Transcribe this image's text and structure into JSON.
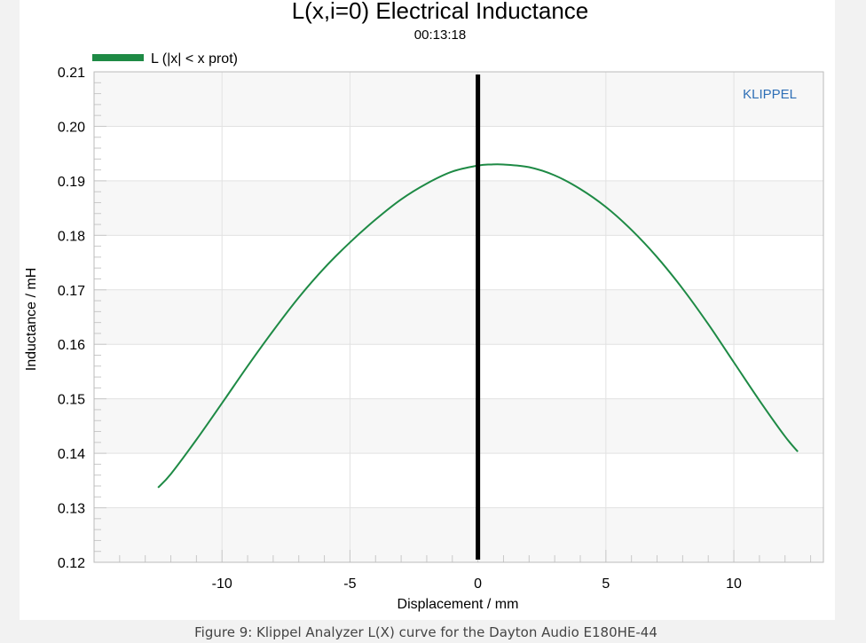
{
  "chart_data": {
    "type": "line",
    "title": "L(x,i=0) Electrical Inductance",
    "subtitle": "00:13:18",
    "xlabel": "Displacement / mm",
    "ylabel": "Inductance / mH",
    "xlim": [
      -15,
      13.5
    ],
    "ylim": [
      0.12,
      0.21
    ],
    "xticks": [
      -10,
      -5,
      0,
      5,
      10
    ],
    "yticks": [
      0.12,
      0.13,
      0.14,
      0.15,
      0.16,
      0.17,
      0.18,
      0.19,
      0.2,
      0.21
    ],
    "ytick_labels": [
      "0.12",
      "0.13",
      "0.14",
      "0.15",
      "0.16",
      "0.17",
      "0.18",
      "0.19",
      "0.20",
      "0.21"
    ],
    "xtick_labels": [
      "-10",
      "-5",
      "0",
      "5",
      "10"
    ],
    "legend_position": "top-left",
    "brand_label": "KLIPPEL",
    "marker_line": {
      "x": 0,
      "color": "#000000"
    },
    "series": [
      {
        "name": "L (|x| < x prot)",
        "color": "#1e8a45",
        "x": [
          -12.5,
          -12,
          -11,
          -10,
          -9,
          -8,
          -7,
          -6,
          -5,
          -4,
          -3,
          -2,
          -1,
          0,
          0.5,
          1,
          2,
          3,
          4,
          5,
          6,
          7,
          8,
          9,
          10,
          11,
          12,
          12.5
        ],
        "y": [
          0.1337,
          0.1362,
          0.1425,
          0.1492,
          0.156,
          0.1625,
          0.1686,
          0.174,
          0.1787,
          0.1829,
          0.1866,
          0.1895,
          0.1917,
          0.1928,
          0.193,
          0.193,
          0.1925,
          0.191,
          0.1885,
          0.1852,
          0.181,
          0.176,
          0.1702,
          0.1637,
          0.1567,
          0.1497,
          0.1431,
          0.1403
        ]
      }
    ]
  },
  "caption": "Figure 9: Klippel Analyzer L(X) curve for the Dayton Audio E180HE-44"
}
